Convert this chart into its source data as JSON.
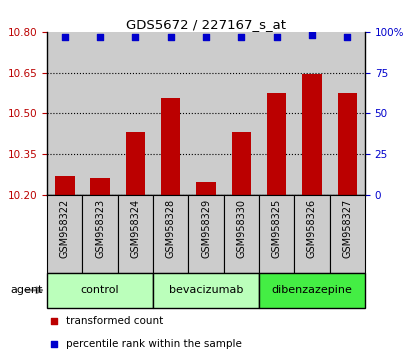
{
  "title": "GDS5672 / 227167_s_at",
  "samples": [
    "GSM958322",
    "GSM958323",
    "GSM958324",
    "GSM958328",
    "GSM958329",
    "GSM958330",
    "GSM958325",
    "GSM958326",
    "GSM958327"
  ],
  "bar_values": [
    10.27,
    10.26,
    10.43,
    10.555,
    10.245,
    10.43,
    10.575,
    10.645,
    10.575
  ],
  "percentile_values": [
    97,
    97,
    97,
    97,
    97,
    97,
    97,
    98,
    97
  ],
  "bar_color": "#bb0000",
  "dot_color": "#0000cc",
  "ylim_left": [
    10.2,
    10.8
  ],
  "ylim_right": [
    0,
    100
  ],
  "yticks_left": [
    10.2,
    10.35,
    10.5,
    10.65,
    10.8
  ],
  "yticks_right": [
    0,
    25,
    50,
    75,
    100
  ],
  "ytick_labels_right": [
    "0",
    "25",
    "50",
    "75",
    "100%"
  ],
  "groups": [
    {
      "label": "control",
      "indices": [
        0,
        1,
        2
      ],
      "color": "#bbffbb"
    },
    {
      "label": "bevacizumab",
      "indices": [
        3,
        4,
        5
      ],
      "color": "#bbffbb"
    },
    {
      "label": "dibenzazepine",
      "indices": [
        6,
        7,
        8
      ],
      "color": "#44ee44"
    }
  ],
  "agent_label": "agent",
  "legend_items": [
    {
      "label": "transformed count",
      "color": "#bb0000",
      "marker": "s"
    },
    {
      "label": "percentile rank within the sample",
      "color": "#0000cc",
      "marker": "s"
    }
  ],
  "bar_width": 0.55,
  "background_color": "#ffffff",
  "col_bg_color": "#cccccc"
}
